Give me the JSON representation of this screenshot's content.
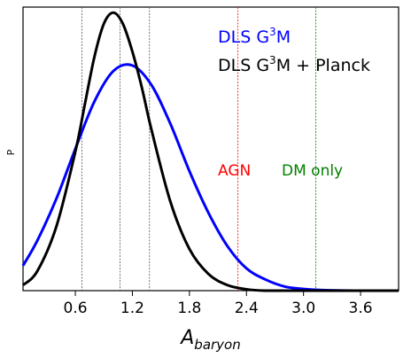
{
  "chart_data": {
    "type": "line",
    "xlabel_main": "A",
    "xlabel_sub": "baryon",
    "ylabel": "P",
    "xlim": [
      0.05,
      4.0
    ],
    "ylim": [
      0,
      1.02
    ],
    "xticks": [
      0.6,
      1.2,
      1.8,
      2.4,
      3.0,
      3.6
    ],
    "xtick_labels": [
      "0.6",
      "1.2",
      "1.8",
      "2.4",
      "3.0",
      "3.6"
    ],
    "grid": false,
    "legend": {
      "placement": "top-right",
      "entries": [
        {
          "text_pre": "DLS G",
          "sup": "3",
          "text_post": "M",
          "color": "#0000ff"
        },
        {
          "text_pre": "DLS G",
          "sup": "3",
          "text_post": "M + Planck",
          "color": "#000000"
        }
      ]
    },
    "series": [
      {
        "color": "#0000ff",
        "x": [
          0.05,
          0.2,
          0.4,
          0.6,
          0.8,
          1.0,
          1.2,
          1.4,
          1.6,
          1.8,
          2.0,
          2.2,
          2.4,
          2.6,
          2.8,
          3.0,
          3.2,
          3.6,
          4.0
        ],
        "y": [
          0.09,
          0.18,
          0.33,
          0.51,
          0.68,
          0.79,
          0.81,
          0.74,
          0.6,
          0.43,
          0.28,
          0.16,
          0.08,
          0.04,
          0.015,
          0.006,
          0.002,
          0.0,
          0.0
        ]
      },
      {
        "color": "#000000",
        "x": [
          0.05,
          0.2,
          0.4,
          0.6,
          0.7,
          0.8,
          0.9,
          1.0,
          1.1,
          1.2,
          1.3,
          1.4,
          1.6,
          1.8,
          2.0,
          2.2,
          2.4,
          2.6,
          3.0,
          4.0
        ],
        "y": [
          0.02,
          0.07,
          0.23,
          0.5,
          0.67,
          0.84,
          0.96,
          1.0,
          0.96,
          0.86,
          0.73,
          0.58,
          0.32,
          0.15,
          0.06,
          0.02,
          0.005,
          0.0,
          0.0,
          0.0
        ]
      }
    ],
    "vlines": [
      {
        "x": 0.67,
        "color": "#555555"
      },
      {
        "x": 1.07,
        "color": "#555555"
      },
      {
        "x": 1.38,
        "color": "#555555"
      },
      {
        "x": 2.31,
        "color": "#ff0000"
      },
      {
        "x": 3.13,
        "color": "#008000"
      }
    ],
    "annotations": [
      {
        "text": "AGN",
        "color": "#ff0000"
      },
      {
        "text": "DM only",
        "color": "#008000"
      }
    ]
  }
}
